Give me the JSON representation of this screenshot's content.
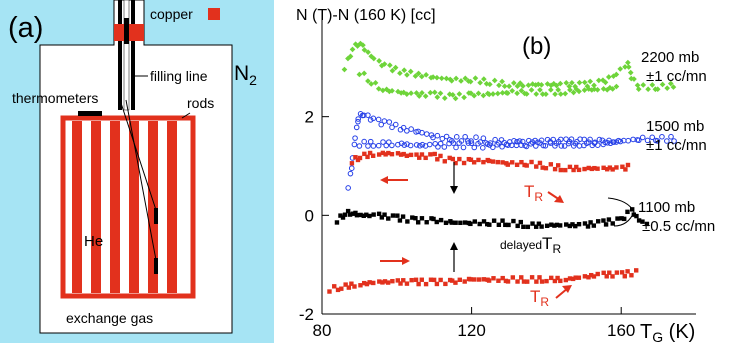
{
  "panel_a": {
    "label": "(a)",
    "legend_copper": "copper",
    "n2": "N",
    "n2_sub": "2",
    "filling_line": "filling line",
    "thermometers": "thermometers",
    "rods": "rods",
    "he": "He",
    "exchange_gas": "exchange gas",
    "colors": {
      "background": "#a6e4f4",
      "copper": "#e2311d",
      "white": "#ffffff"
    }
  },
  "panel_b": {
    "label": "(b)",
    "annotations": {
      "a2200": "2200 mb",
      "a2200_rate": "±1 cc/mn",
      "a1500": "1500 mb",
      "a1500_rate": "±1 cc/mn",
      "a1100": "1100 mb",
      "a1100_rate": "±0.5 cc/mn",
      "tr": "T",
      "tr_sub": "R",
      "delayed": "delayed",
      "delayed_t": "T",
      "delayed_sub": "R"
    }
  },
  "chart_data": {
    "type": "scatter",
    "ylabel": "N (T)-N (160 K) [cc]",
    "xlabel": "T",
    "xlabel_sub": "G",
    "xlabel_unit": " (K)",
    "xlim": [
      80,
      180
    ],
    "ylim": [
      -2,
      4
    ],
    "xticks": [
      80,
      120,
      160
    ],
    "yticks": [
      -2,
      0,
      2
    ],
    "colors": {
      "green": "#6ed43a",
      "blue": "#2640e8",
      "red": "#e2311d",
      "black": "#000000"
    },
    "series": [
      {
        "key": "green",
        "marker": "diamond",
        "color": "#6ed43a",
        "x": [
          86,
          88,
          90,
          92,
          95,
          98,
          102,
          106,
          110,
          115,
          120,
          125,
          130,
          135,
          140,
          145,
          150,
          155,
          158,
          162,
          163,
          165,
          170,
          175
        ],
        "y": [
          3.0,
          3.4,
          3.5,
          3.3,
          3.1,
          3.0,
          2.9,
          2.85,
          2.8,
          2.75,
          2.75,
          2.7,
          2.65,
          2.65,
          2.65,
          2.65,
          2.65,
          2.7,
          2.8,
          3.1,
          2.8,
          2.6,
          2.6,
          2.65
        ]
      },
      {
        "key": "green_lower",
        "marker": "diamond",
        "color": "#6ed43a",
        "x": [
          90,
          93,
          96,
          100,
          105,
          110,
          115,
          120,
          125,
          130,
          135,
          140,
          145,
          150,
          155,
          160
        ],
        "y": [
          2.9,
          2.7,
          2.55,
          2.5,
          2.45,
          2.45,
          2.4,
          2.45,
          2.45,
          2.5,
          2.5,
          2.5,
          2.5,
          2.55,
          2.55,
          2.6
        ]
      },
      {
        "key": "blue",
        "marker": "circle",
        "color": "#2640e8",
        "x": [
          87,
          88,
          89,
          90,
          92,
          95,
          98,
          102,
          106,
          110,
          115,
          120,
          125,
          130,
          135,
          140,
          145,
          150,
          155,
          160,
          165,
          170,
          175
        ],
        "y": [
          0.6,
          1.2,
          1.8,
          2.05,
          2.0,
          1.9,
          1.85,
          1.75,
          1.7,
          1.6,
          1.55,
          1.55,
          1.5,
          1.5,
          1.5,
          1.5,
          1.5,
          1.5,
          1.5,
          1.5,
          1.55,
          1.55,
          1.55
        ]
      },
      {
        "key": "blue_lower",
        "marker": "circle",
        "color": "#2640e8",
        "x": [
          90,
          95,
          100,
          105,
          110,
          115,
          120,
          125,
          130,
          135,
          140,
          145,
          150,
          155,
          160
        ],
        "y": [
          1.45,
          1.45,
          1.45,
          1.42,
          1.42,
          1.42,
          1.42,
          1.4,
          1.42,
          1.42,
          1.45,
          1.45,
          1.45,
          1.45,
          1.5
        ]
      },
      {
        "key": "red_upper",
        "marker": "square",
        "color": "#e2311d",
        "x": [
          88,
          90,
          95,
          100,
          105,
          110,
          115,
          120,
          125,
          130,
          135,
          140,
          145,
          150,
          155,
          160,
          163
        ],
        "y": [
          1.1,
          1.2,
          1.25,
          1.25,
          1.2,
          1.2,
          1.1,
          1.1,
          1.1,
          1.05,
          1.05,
          1.0,
          0.95,
          0.95,
          0.95,
          0.95,
          1.0
        ]
      },
      {
        "key": "black",
        "marker": "square",
        "color": "#000000",
        "x": [
          84,
          86,
          88,
          90,
          95,
          100,
          105,
          110,
          115,
          120,
          125,
          130,
          135,
          140,
          145,
          150,
          155,
          160,
          163,
          165,
          168
        ],
        "y": [
          -0.1,
          0.05,
          0.05,
          0.0,
          0.0,
          -0.05,
          -0.1,
          -0.1,
          -0.15,
          -0.15,
          -0.15,
          -0.15,
          -0.2,
          -0.2,
          -0.2,
          -0.2,
          -0.15,
          -0.1,
          0.1,
          -0.1,
          -0.2
        ]
      },
      {
        "key": "red_lower",
        "marker": "square",
        "color": "#e2311d",
        "x": [
          82,
          85,
          90,
          95,
          100,
          105,
          110,
          115,
          120,
          125,
          130,
          135,
          140,
          145,
          150,
          155,
          160,
          165
        ],
        "y": [
          -1.5,
          -1.45,
          -1.4,
          -1.35,
          -1.35,
          -1.35,
          -1.35,
          -1.35,
          -1.3,
          -1.3,
          -1.3,
          -1.3,
          -1.3,
          -1.3,
          -1.25,
          -1.2,
          -1.2,
          -1.15
        ]
      }
    ]
  }
}
